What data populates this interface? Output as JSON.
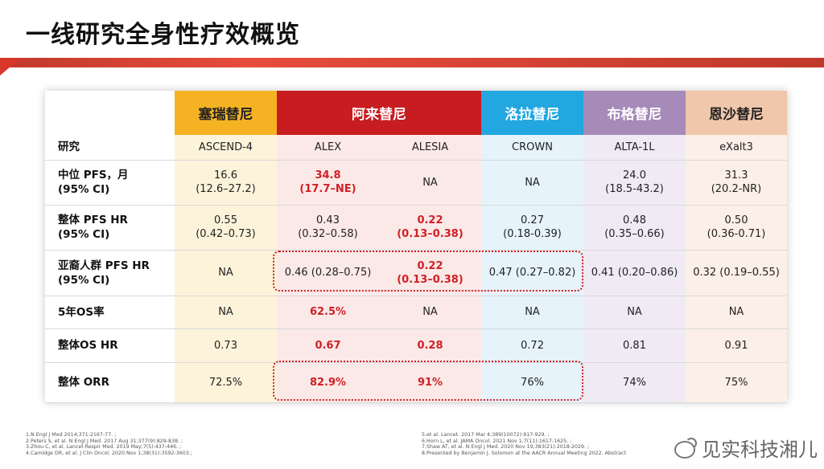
{
  "title": "一线研究全身性疗效概览",
  "table": {
    "headers": [
      {
        "label": "塞瑞替尼"
      },
      {
        "label": "阿来替尼"
      },
      {
        "label": "洛拉替尼"
      },
      {
        "label": "布格替尼"
      },
      {
        "label": "恩沙替尼"
      }
    ],
    "rows": [
      {
        "label_line1": "研究",
        "label_line2": "",
        "cells": [
          {
            "l1": "ASCEND-4",
            "l2": "",
            "red": false
          },
          {
            "l1": "ALEX",
            "l2": "",
            "red": false
          },
          {
            "l1": "ALESIA",
            "l2": "",
            "red": false
          },
          {
            "l1": "CROWN",
            "l2": "",
            "red": false
          },
          {
            "l1": "ALTA-1L",
            "l2": "",
            "red": false
          },
          {
            "l1": "eXalt3",
            "l2": "",
            "red": false
          }
        ]
      },
      {
        "label_line1": "中位 PFS，月",
        "label_line2": "(95% CI)",
        "cells": [
          {
            "l1": "16.6",
            "l2": "(12.6–27.2)",
            "red": false
          },
          {
            "l1": "34.8",
            "l2": "(17.7–NE)",
            "red": true
          },
          {
            "l1": "NA",
            "l2": "",
            "red": false
          },
          {
            "l1": "NA",
            "l2": "",
            "red": false
          },
          {
            "l1": "24.0",
            "l2": "(18.5-43.2)",
            "red": false
          },
          {
            "l1": "31.3",
            "l2": "(20.2-NR)",
            "red": false
          }
        ]
      },
      {
        "label_line1": "整体 PFS HR",
        "label_line2": "(95% CI)",
        "cells": [
          {
            "l1": "0.55",
            "l2": "(0.42–0.73)",
            "red": false
          },
          {
            "l1": "0.43",
            "l2": "(0.32–0.58)",
            "red": false
          },
          {
            "l1": "0.22",
            "l2": "(0.13–0.38)",
            "red": true
          },
          {
            "l1": "0.27",
            "l2": "(0.18-0.39)",
            "red": false
          },
          {
            "l1": "0.48",
            "l2": "(0.35–0.66)",
            "red": false
          },
          {
            "l1": "0.50",
            "l2": "(0.36-0.71)",
            "red": false
          }
        ]
      },
      {
        "label_line1": "亚裔人群 PFS HR",
        "label_line2": "(95% CI)",
        "cells": [
          {
            "l1": "NA",
            "l2": "",
            "red": false
          },
          {
            "l1": "0.46 (0.28–0.75)",
            "l2": "",
            "red": false
          },
          {
            "l1": "0.22",
            "l2": "(0.13–0.38)",
            "red": true
          },
          {
            "l1": "0.47 (0.27–0.82)",
            "l2": "",
            "red": false
          },
          {
            "l1": "0.41 (0.20–0.86)",
            "l2": "",
            "red": false
          },
          {
            "l1": "0.32 (0.19–0.55)",
            "l2": "",
            "red": false
          }
        ]
      },
      {
        "label_line1": "5年OS率",
        "label_line2": "",
        "cells": [
          {
            "l1": "NA",
            "l2": "",
            "red": false
          },
          {
            "l1": "62.5%",
            "l2": "",
            "red": true
          },
          {
            "l1": "NA",
            "l2": "",
            "red": false
          },
          {
            "l1": "NA",
            "l2": "",
            "red": false
          },
          {
            "l1": "NA",
            "l2": "",
            "red": false
          },
          {
            "l1": "NA",
            "l2": "",
            "red": false
          }
        ]
      },
      {
        "label_line1": "整体OS HR",
        "label_line2": "",
        "cells": [
          {
            "l1": "0.73",
            "l2": "",
            "red": false
          },
          {
            "l1": "0.67",
            "l2": "",
            "red": true
          },
          {
            "l1": "0.28",
            "l2": "",
            "red": true
          },
          {
            "l1": "0.72",
            "l2": "",
            "red": false
          },
          {
            "l1": "0.81",
            "l2": "",
            "red": false
          },
          {
            "l1": "0.91",
            "l2": "",
            "red": false
          }
        ]
      },
      {
        "label_line1": "整体 ORR",
        "label_line2": "",
        "cells": [
          {
            "l1": "72.5%",
            "l2": "",
            "red": false
          },
          {
            "l1": "82.9%",
            "l2": "",
            "red": true
          },
          {
            "l1": "91%",
            "l2": "",
            "red": true
          },
          {
            "l1": "76%",
            "l2": "",
            "red": false
          },
          {
            "l1": "74%",
            "l2": "",
            "red": false
          },
          {
            "l1": "75%",
            "l2": "",
            "red": false
          }
        ]
      }
    ]
  },
  "references_left": [
    "1.N Engl J Med 2014;371:2167-77. ;",
    "2.Peters S, et al. N Engl J Med. 2017 Aug 31;377(9):829-838. ;",
    "3.Zhou C, et al. Lancet Respir Med. 2019 May;7(5):437-446. ;",
    "4.Camidge DR, et al. J Clin Oncol. 2020 Nov 1;38(31):3592-3603.;"
  ],
  "references_right": [
    "5.et al. Lancet. 2017 Mar 4;389(10072):917-929. ;",
    "6.Horn L, et al. JAMA Oncol. 2021 Nov 1;7(11):1617-1625. ;",
    "7.Shaw AT, et al. N Engl J Med. 2020 Nov 19;383(21):2018-2029. ;",
    "8.Presented by Benjamin J. Solomon at the AACR Annual Meeting 2022. Abstract"
  ],
  "watermark": "见实科技湘儿",
  "colors": {
    "accent_red": "#d01f24",
    "header_ceritinib": "#f5b324",
    "header_alectinib": "#c71c20",
    "header_lorlatinib": "#22a7e0",
    "header_brigatinib": "#a68ab8",
    "header_ensartinib": "#f0c7ab"
  }
}
